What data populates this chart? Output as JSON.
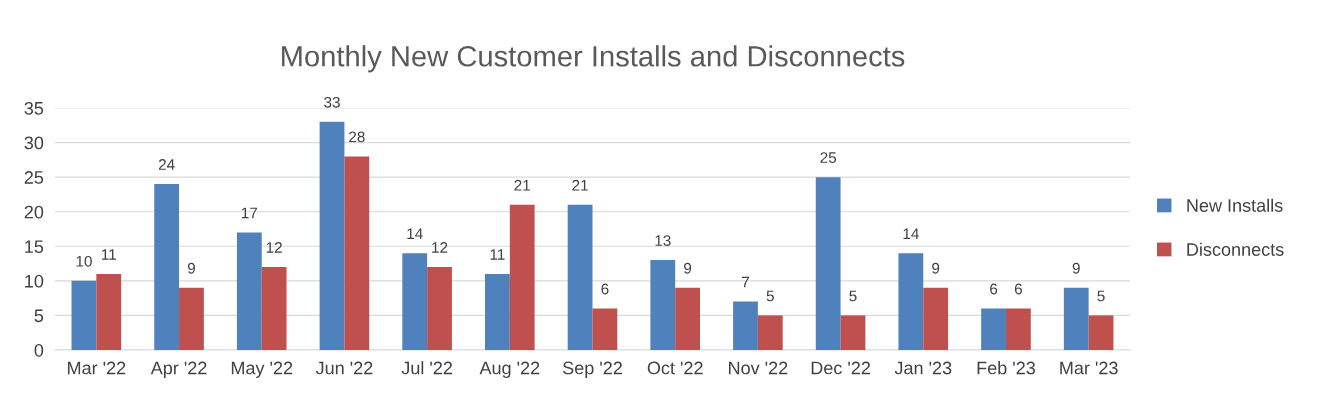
{
  "chart_data": {
    "type": "bar",
    "title": "Monthly New Customer Installs and Disconnects",
    "categories": [
      "Mar '22",
      "Apr '22",
      "May '22",
      "Jun '22",
      "Jul '22",
      "Aug '22",
      "Sep '22",
      "Oct '22",
      "Nov '22",
      "Dec '22",
      "Jan '23",
      "Feb '23",
      "Mar '23"
    ],
    "series": [
      {
        "name": "New Installs",
        "color": "#4f81bd",
        "values": [
          10,
          24,
          17,
          33,
          14,
          11,
          21,
          13,
          7,
          25,
          14,
          6,
          9
        ]
      },
      {
        "name": "Disconnects",
        "color": "#c0504d",
        "values": [
          11,
          9,
          12,
          28,
          12,
          21,
          6,
          9,
          5,
          5,
          9,
          6,
          5
        ]
      }
    ],
    "ylim": [
      0,
      35
    ],
    "yticks": [
      0,
      5,
      10,
      15,
      20,
      25,
      30,
      35
    ],
    "grid": "y",
    "legend": "right",
    "data_labels": true
  }
}
